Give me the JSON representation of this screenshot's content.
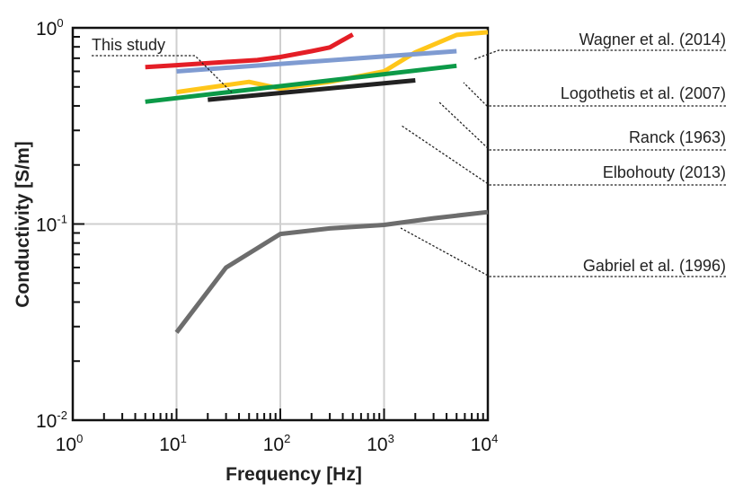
{
  "chart_data": {
    "type": "line",
    "xscale": "log",
    "yscale": "log",
    "xlim": [
      1,
      10000
    ],
    "ylim": [
      0.01,
      1
    ],
    "xlabel": "Frequency [Hz]",
    "ylabel": "Conductivity [S/m]",
    "grid": true,
    "xticks": [
      {
        "base": "10",
        "exp": "0",
        "value": 1
      },
      {
        "base": "10",
        "exp": "1",
        "value": 10
      },
      {
        "base": "10",
        "exp": "2",
        "value": 100
      },
      {
        "base": "10",
        "exp": "3",
        "value": 1000
      },
      {
        "base": "10",
        "exp": "4",
        "value": 10000
      }
    ],
    "yticks": [
      {
        "base": "10",
        "exp": "0",
        "value": 1
      },
      {
        "base": "10",
        "exp": "-1",
        "value": 0.1
      },
      {
        "base": "10",
        "exp": "-2",
        "value": 0.01
      }
    ],
    "series": [
      {
        "name": "This study",
        "color": "#e41e26",
        "x": [
          5,
          10,
          30,
          60,
          100,
          200,
          300,
          500
        ],
        "y": [
          0.63,
          0.645,
          0.67,
          0.685,
          0.71,
          0.76,
          0.795,
          0.925
        ]
      },
      {
        "name": "Wagner et al. (2014)",
        "color": "#ffc61a",
        "x": [
          10,
          50,
          100,
          300,
          1000,
          2000,
          5000,
          10000
        ],
        "y": [
          0.47,
          0.53,
          0.49,
          0.53,
          0.6,
          0.75,
          0.92,
          0.95
        ]
      },
      {
        "name": "Logothetis et al. (2007)",
        "color": "#7f9bd1",
        "x": [
          10,
          5000
        ],
        "y": [
          0.6,
          0.76
        ]
      },
      {
        "name": "Ranck (1963)",
        "color": "#0c9a48",
        "x": [
          5,
          5000
        ],
        "y": [
          0.42,
          0.64
        ]
      },
      {
        "name": "Elbohouty (2013)",
        "color": "#222222",
        "x": [
          20,
          2000
        ],
        "y": [
          0.43,
          0.54
        ]
      },
      {
        "name": "Gabriel et al. (1996)",
        "color": "#6d6d6d",
        "x": [
          10,
          30,
          100,
          300,
          1000,
          3000,
          10000
        ],
        "y": [
          0.028,
          0.06,
          0.089,
          0.095,
          0.099,
          0.107,
          0.115
        ]
      }
    ]
  }
}
